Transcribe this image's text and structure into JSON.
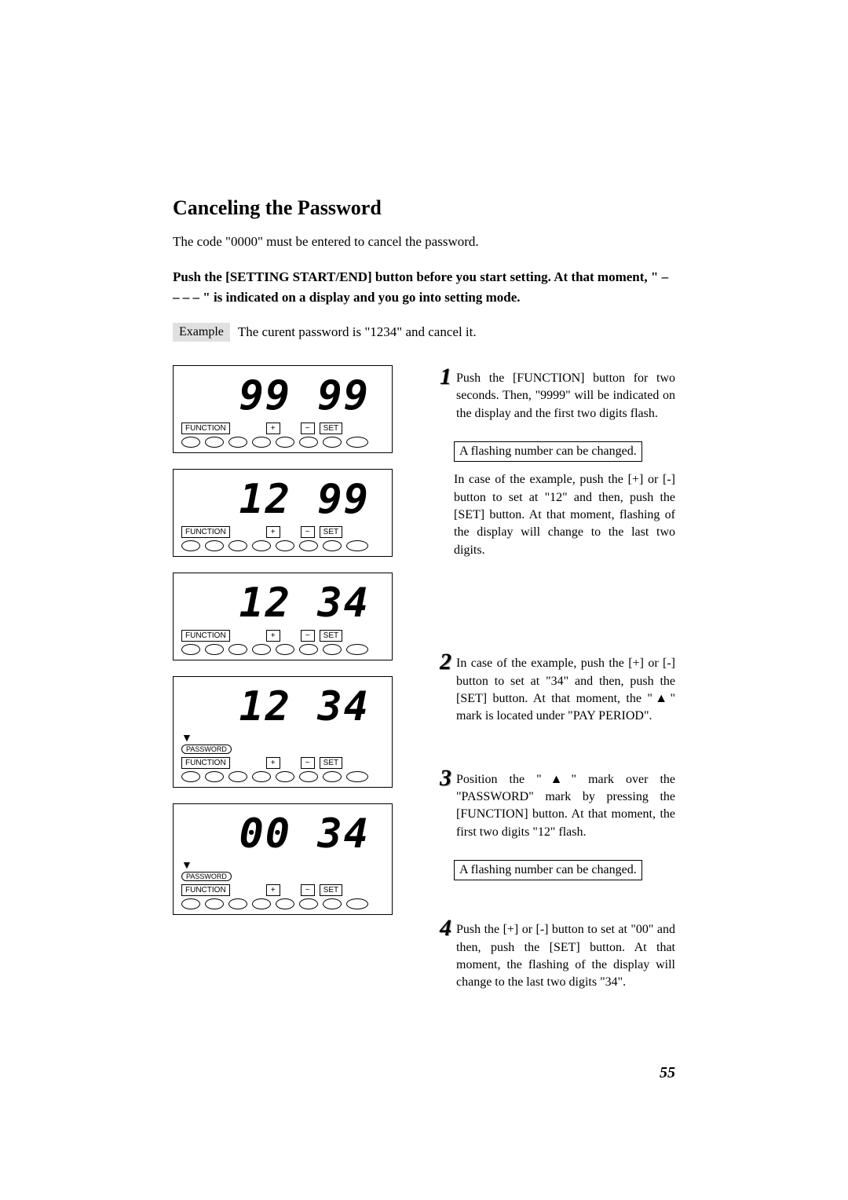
{
  "title": "Canceling the Password",
  "intro": "The code \"0000\" must be entered to cancel the password.",
  "instruction": "Push the [SETTING START/END] button before you start setting. At that moment, \" – – – – \" is indicated on a display and you go into setting mode.",
  "example_label": "Example",
  "example_text": "The curent password is \"1234\" and cancel it.",
  "displays": [
    {
      "value": "99 99",
      "show_password": false
    },
    {
      "value": "12 99",
      "show_password": false
    },
    {
      "value": "12 34",
      "show_password": false
    },
    {
      "value": "12 34",
      "show_password": true
    },
    {
      "value": "00 34",
      "show_password": true
    }
  ],
  "buttons": {
    "function": "FUNCTION",
    "plus": "+",
    "minus": "−",
    "set": "SET"
  },
  "password_label": "PASSWORD",
  "steps": [
    {
      "num": "1",
      "text": "Push the [FUNCTION] button for two seconds. Then, \"9999\" will be indicated on the display and the first two digits flash.",
      "note": "A flashing number can be changed.",
      "continuation": "In case of the example, push the [+] or [-] button to set at \"12\" and then, push the [SET] button. At that moment, flashing of the display will change to the last two digits."
    },
    {
      "num": "2",
      "text": "In case of the example, push the [+] or [-] button to set at \"34\" and then, push the [SET] button. At that moment, the \"▲\" mark is located under \"PAY PERIOD\"."
    },
    {
      "num": "3",
      "text": "Position the \"▲\" mark over the \"PASSWORD\" mark by pressing the [FUNCTION] button. At that moment, the first two digits \"12\" flash.",
      "note": "A flashing number can be changed."
    },
    {
      "num": "4",
      "text": "Push the [+] or [-] button to set at \"00\" and then, push the [SET] button. At that moment, the flashing of the display will change to the last two digits \"34\"."
    }
  ],
  "page_number": "55"
}
